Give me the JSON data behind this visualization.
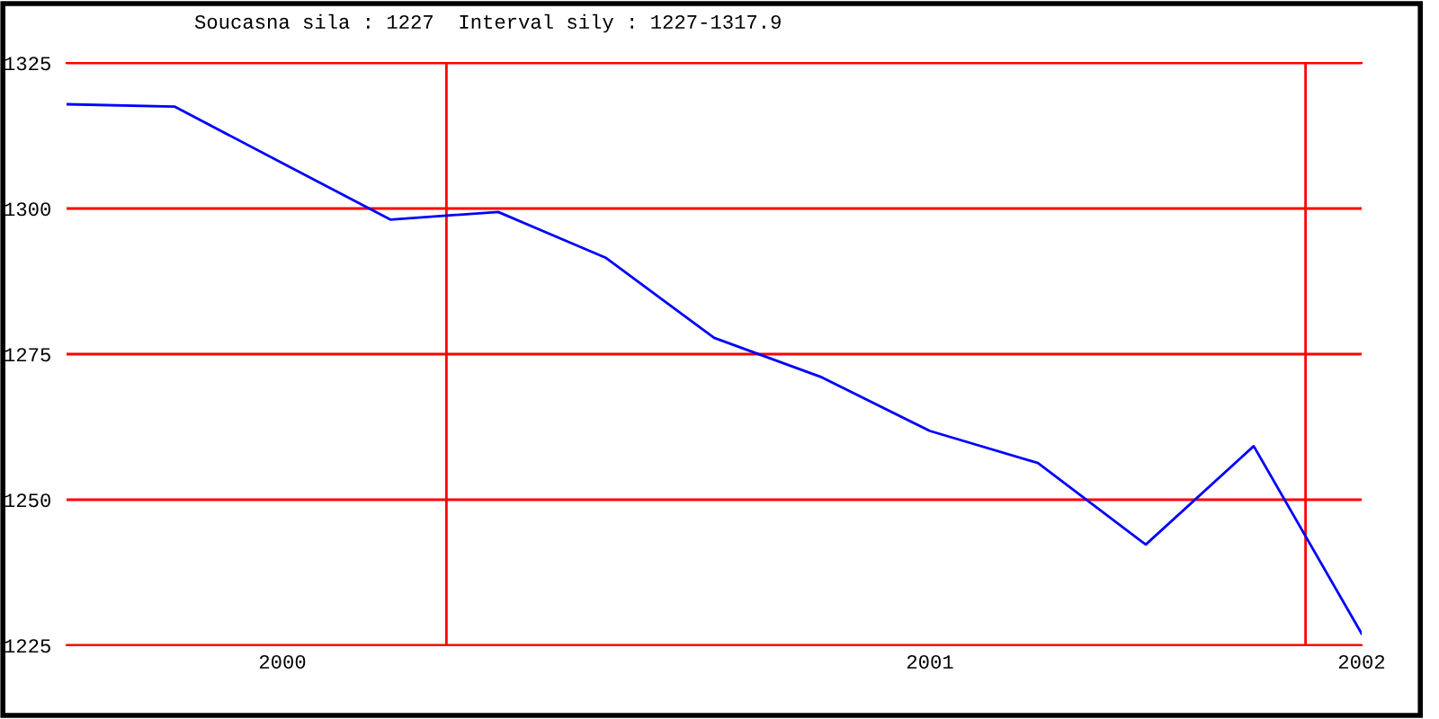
{
  "chart_data": {
    "type": "line",
    "title": "Soucasna sila : 1227  Interval sily : 1227-1317.9",
    "categories": [
      null,
      null,
      "2000",
      null,
      null,
      null,
      null,
      null,
      "2001",
      null,
      null,
      null,
      "2002"
    ],
    "series": [
      {
        "color": "#0000ff",
        "values": [
          1317.9,
          1317.5,
          1307.8,
          1298.1,
          1299.4,
          1291.5,
          1277.8,
          1271.0,
          1261.8,
          1256.3,
          1242.3,
          1259.2,
          1227
        ]
      }
    ],
    "ylim": [
      1225,
      1325
    ],
    "yticks": [
      1225,
      1250,
      1275,
      1300,
      1325
    ],
    "grid": "y",
    "legend": false,
    "marker": "none",
    "line_style": "solid"
  }
}
